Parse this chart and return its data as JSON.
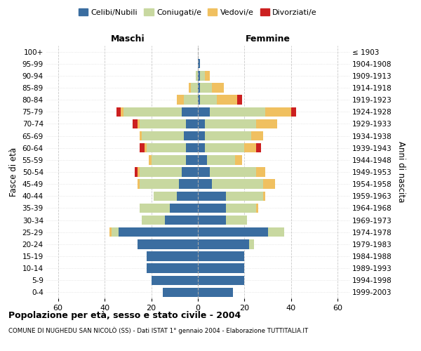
{
  "age_groups": [
    "100+",
    "95-99",
    "90-94",
    "85-89",
    "80-84",
    "75-79",
    "70-74",
    "65-69",
    "60-64",
    "55-59",
    "50-54",
    "45-49",
    "40-44",
    "35-39",
    "30-34",
    "25-29",
    "20-24",
    "15-19",
    "10-14",
    "5-9",
    "0-4"
  ],
  "birth_years": [
    "≤ 1903",
    "1904-1908",
    "1909-1913",
    "1914-1918",
    "1919-1923",
    "1924-1928",
    "1929-1933",
    "1934-1938",
    "1939-1943",
    "1944-1948",
    "1949-1953",
    "1954-1958",
    "1959-1963",
    "1964-1968",
    "1969-1973",
    "1974-1978",
    "1979-1983",
    "1984-1988",
    "1989-1993",
    "1994-1998",
    "1999-2003"
  ],
  "colors": {
    "celibi": "#3a6da0",
    "coniugati": "#c8d8a0",
    "vedovi": "#f0c060",
    "divorziati": "#cc2020"
  },
  "maschi": {
    "celibi": [
      0,
      0,
      0,
      0,
      0,
      7,
      5,
      6,
      5,
      5,
      7,
      8,
      9,
      12,
      14,
      34,
      26,
      22,
      22,
      20,
      15
    ],
    "coniugati": [
      0,
      0,
      1,
      3,
      6,
      25,
      20,
      18,
      17,
      15,
      18,
      17,
      10,
      13,
      10,
      3,
      0,
      0,
      0,
      0,
      0
    ],
    "vedovi": [
      0,
      0,
      0,
      1,
      3,
      1,
      1,
      1,
      1,
      1,
      1,
      1,
      0,
      0,
      0,
      1,
      0,
      0,
      0,
      0,
      0
    ],
    "divorziati": [
      0,
      0,
      0,
      0,
      0,
      2,
      2,
      0,
      2,
      0,
      1,
      0,
      0,
      0,
      0,
      0,
      0,
      0,
      0,
      0,
      0
    ]
  },
  "femmine": {
    "celibi": [
      0,
      1,
      1,
      1,
      1,
      5,
      3,
      3,
      3,
      4,
      5,
      6,
      12,
      12,
      12,
      30,
      22,
      20,
      20,
      20,
      15
    ],
    "coniugati": [
      0,
      0,
      2,
      5,
      7,
      24,
      22,
      20,
      17,
      12,
      20,
      22,
      16,
      13,
      9,
      7,
      2,
      0,
      0,
      0,
      0
    ],
    "vedovi": [
      0,
      0,
      2,
      5,
      9,
      11,
      9,
      5,
      5,
      3,
      4,
      5,
      1,
      1,
      0,
      0,
      0,
      0,
      0,
      0,
      0
    ],
    "divorziati": [
      0,
      0,
      0,
      0,
      2,
      2,
      0,
      0,
      2,
      0,
      0,
      0,
      0,
      0,
      0,
      0,
      0,
      0,
      0,
      0,
      0
    ]
  },
  "xlim": 65,
  "title": "Popolazione per età, sesso e stato civile - 2004",
  "subtitle": "COMUNE DI NUGHEDU SAN NICOLÒ (SS) - Dati ISTAT 1° gennaio 2004 - Elaborazione TUTTITALIA.IT",
  "ylabel_left": "Fasce di età",
  "ylabel_right": "Anni di nascita",
  "label_maschi": "Maschi",
  "label_femmine": "Femmine",
  "legend_labels": [
    "Celibi/Nubili",
    "Coniugati/e",
    "Vedovi/e",
    "Divorziati/e"
  ],
  "bg_color": "#ffffff"
}
